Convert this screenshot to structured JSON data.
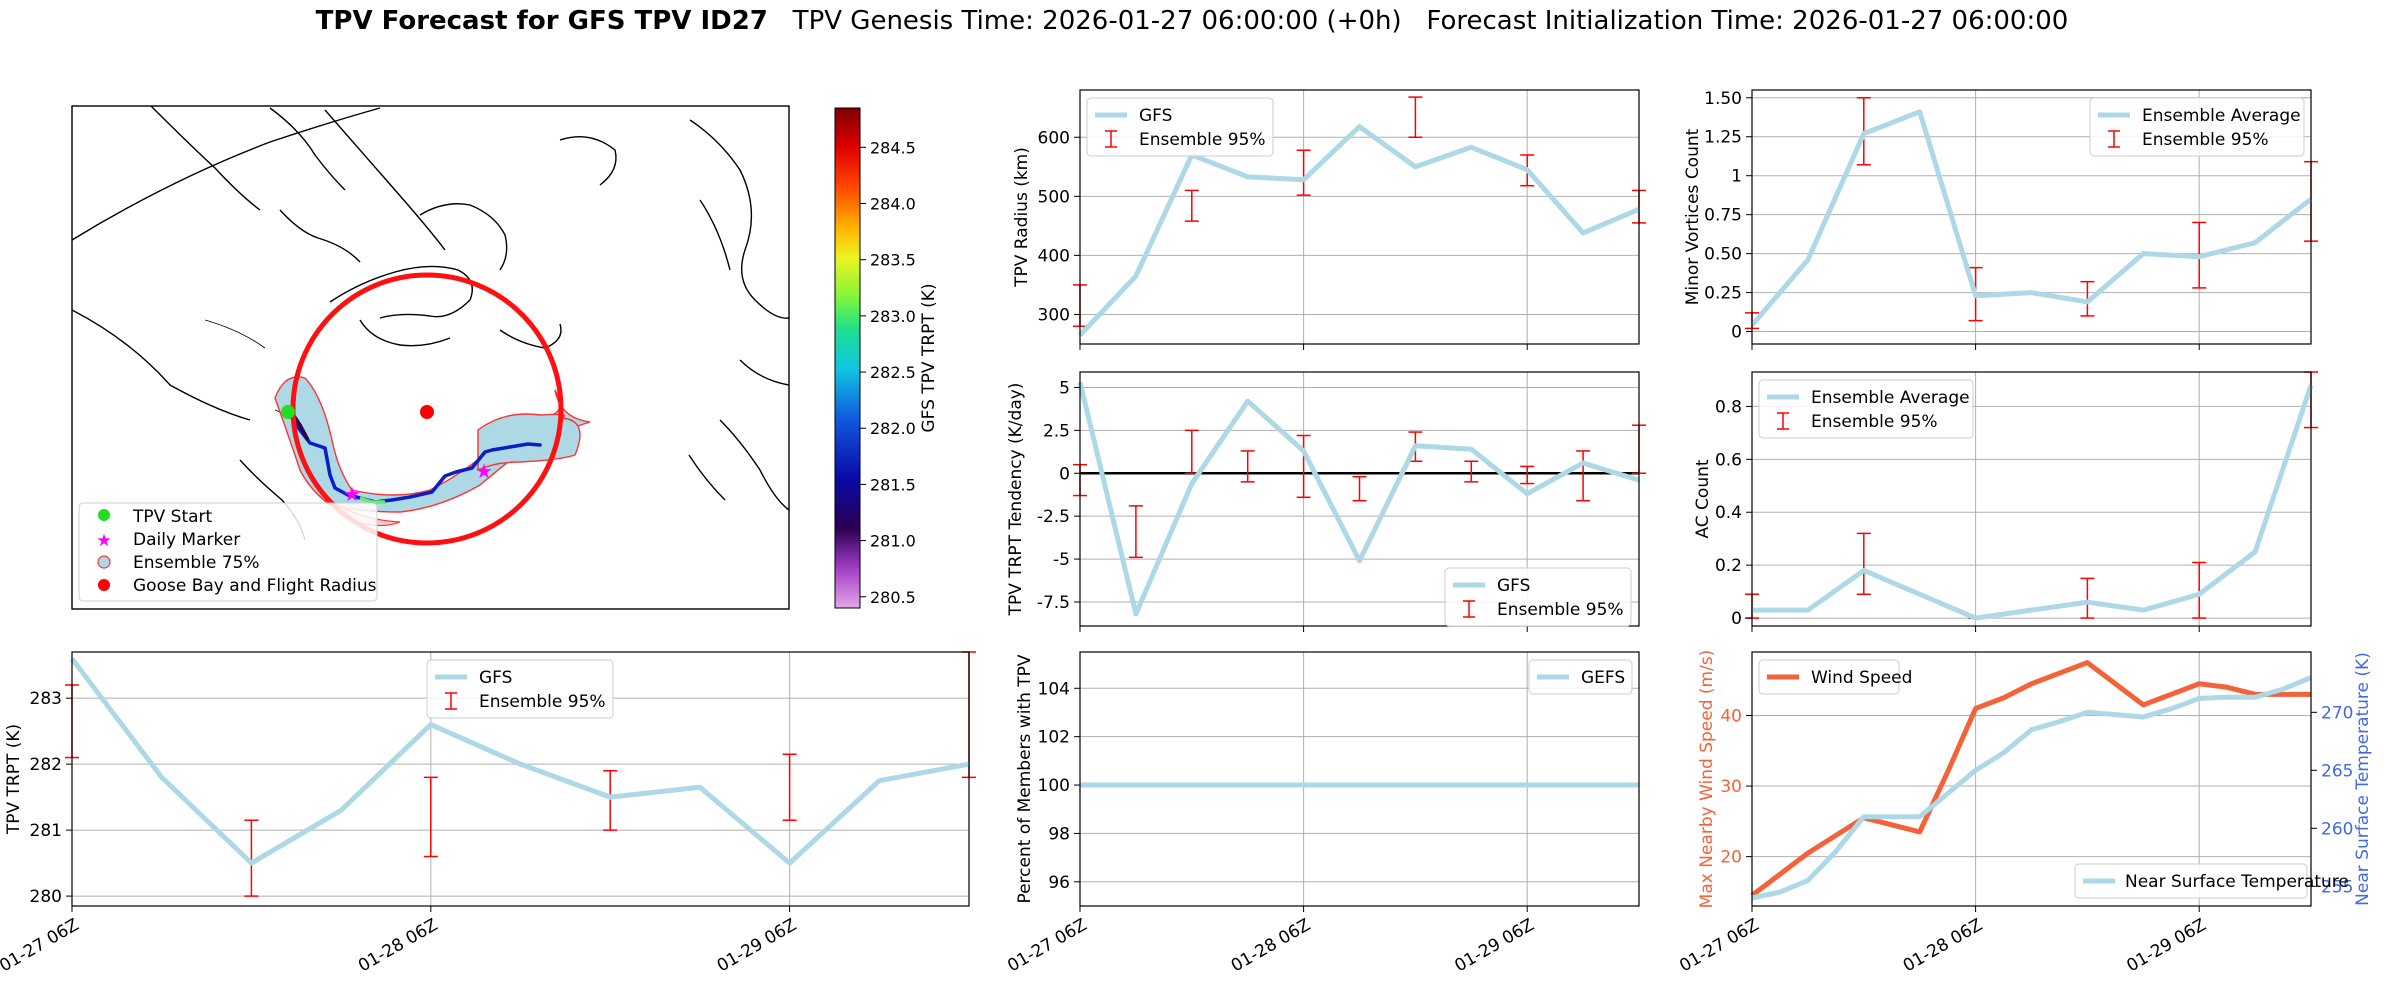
{
  "figure": {
    "title_bold": "TPV Forecast for GFS TPV ID27",
    "title_rest": "   TPV Genesis Time: 2026-01-27 06:00:00 (+0h)   Forecast Initialization Time: 2026-01-27 06:00:00"
  },
  "map": {
    "legend": [
      "TPV Start",
      "Daily Marker",
      "Ensemble 75%",
      "Goose Bay and Flight Radius"
    ],
    "colorbar": {
      "label": "GFS TPV TRPT (K)",
      "ticks": [
        "280.5",
        "281.0",
        "281.5",
        "282.0",
        "282.5",
        "283.0",
        "283.5",
        "284.0",
        "284.5"
      ],
      "range": [
        280.4,
        284.85
      ]
    },
    "colors": {
      "start": "#22dd22",
      "marker": "#ff00ff",
      "ensemble_fill": "#add8e6",
      "ensemble_edge": "#ff3333",
      "goose": "#ff0000"
    }
  },
  "x_ticks": [
    "01-27 06Z",
    "01-28 06Z",
    "01-29 06Z"
  ],
  "colors": {
    "line": "#add8e6",
    "err": "#ff0000",
    "wind": "#f4623a",
    "temp": "#add8e6",
    "temp_axis": "#4169e1"
  },
  "chart_data": [
    {
      "id": "radius",
      "type": "line",
      "ylabel": "TPV Radius (km)",
      "ylim": [
        250,
        680
      ],
      "yticks": [
        300,
        400,
        500,
        600
      ],
      "legend": [
        "GFS",
        "Ensemble 95%"
      ],
      "x": [
        0,
        0.25,
        0.5,
        0.75,
        1,
        1.25,
        1.5,
        1.75,
        2,
        2.25,
        2.5
      ],
      "values": [
        265,
        365,
        570,
        533,
        528,
        618,
        550,
        583,
        545,
        438,
        478
      ],
      "errorbars": [
        [
          0,
          280,
          350
        ],
        [
          0.5,
          458,
          510
        ],
        [
          1,
          502,
          578
        ],
        [
          1.5,
          600,
          668
        ],
        [
          2,
          518,
          570
        ],
        [
          2.5,
          455,
          510
        ]
      ]
    },
    {
      "id": "minor",
      "type": "line",
      "ylabel": "Minor Vortices Count",
      "ylim": [
        -0.08,
        1.55
      ],
      "yticks": [
        0.0,
        0.25,
        0.5,
        0.75,
        1.0,
        1.25,
        1.5
      ],
      "legend": [
        "Ensemble Average",
        "Ensemble 95%"
      ],
      "x": [
        0,
        0.25,
        0.5,
        0.75,
        1,
        1.25,
        1.5,
        1.75,
        2,
        2.25,
        2.5
      ],
      "values": [
        0.04,
        0.46,
        1.27,
        1.41,
        0.23,
        0.25,
        0.19,
        0.5,
        0.48,
        0.57,
        0.85
      ],
      "errorbars": [
        [
          0,
          0.02,
          0.12
        ],
        [
          0.5,
          1.07,
          1.5
        ],
        [
          1,
          0.07,
          0.41
        ],
        [
          1.5,
          0.1,
          0.32
        ],
        [
          2,
          0.28,
          0.7
        ],
        [
          2.5,
          0.58,
          1.09
        ]
      ]
    },
    {
      "id": "tendency",
      "type": "line",
      "ylabel": "TPV TRPT Tendency (K/day)",
      "ylim": [
        -8.9,
        5.9
      ],
      "yticks": [
        -7.5,
        -5.0,
        -2.5,
        0.0,
        2.5,
        5.0
      ],
      "legend": [
        "GFS",
        "Ensemble 95%"
      ],
      "x": [
        0,
        0.25,
        0.5,
        0.75,
        1,
        1.25,
        1.5,
        1.75,
        2,
        2.25,
        2.5
      ],
      "values": [
        5.3,
        -8.2,
        -0.6,
        4.2,
        1.3,
        -5.1,
        1.6,
        1.4,
        -1.2,
        0.6,
        -0.4
      ],
      "errorbars": [
        [
          0,
          -1.3,
          0.5
        ],
        [
          0.25,
          -4.9,
          -1.9
        ],
        [
          0.5,
          0.0,
          2.5
        ],
        [
          0.75,
          -0.5,
          1.3
        ],
        [
          1,
          -1.4,
          2.2
        ],
        [
          1.25,
          -1.6,
          -0.2
        ],
        [
          1.5,
          0.7,
          2.4
        ],
        [
          1.75,
          -0.5,
          0.7
        ],
        [
          2,
          -0.6,
          0.4
        ],
        [
          2.25,
          -1.6,
          1.3
        ],
        [
          2.5,
          0.0,
          2.8
        ]
      ]
    },
    {
      "id": "ac",
      "type": "line",
      "ylabel": "AC Count",
      "ylim": [
        -0.03,
        0.93
      ],
      "yticks": [
        0.0,
        0.2,
        0.4,
        0.6,
        0.8
      ],
      "legend": [
        "Ensemble Average",
        "Ensemble 95%"
      ],
      "x": [
        0,
        0.25,
        0.5,
        0.75,
        1,
        1.25,
        1.5,
        1.75,
        2,
        2.25,
        2.5
      ],
      "values": [
        0.03,
        0.03,
        0.18,
        0.09,
        0.0,
        0.03,
        0.06,
        0.03,
        0.09,
        0.25,
        0.88
      ],
      "errorbars": [
        [
          0,
          0.0,
          0.09
        ],
        [
          0.5,
          0.09,
          0.32
        ],
        [
          1,
          0.0,
          0.0
        ],
        [
          1.5,
          0.0,
          0.15
        ],
        [
          2,
          0.0,
          0.21
        ],
        [
          2.5,
          0.72,
          0.93
        ]
      ]
    },
    {
      "id": "trpt",
      "type": "line",
      "ylabel": "TPV TRPT (K)",
      "ylim": [
        279.85,
        283.7
      ],
      "yticks": [
        280,
        281,
        282,
        283
      ],
      "legend": [
        "GFS",
        "Ensemble 95%"
      ],
      "x": [
        0,
        0.25,
        0.5,
        0.75,
        1,
        1.25,
        1.5,
        1.75,
        2,
        2.25,
        2.5
      ],
      "values": [
        283.6,
        281.8,
        280.5,
        281.3,
        282.6,
        282.0,
        281.5,
        281.65,
        280.5,
        281.75,
        282.0
      ],
      "errorbars": [
        [
          0,
          282.1,
          283.2
        ],
        [
          0.5,
          280.0,
          281.15
        ],
        [
          1,
          280.6,
          281.8
        ],
        [
          1.5,
          281.0,
          281.9
        ],
        [
          2,
          281.15,
          282.15
        ],
        [
          2.5,
          281.8,
          283.7
        ]
      ]
    },
    {
      "id": "percent",
      "type": "line",
      "ylabel": "Percent of Members with TPV",
      "ylim": [
        95,
        105.5
      ],
      "yticks": [
        96,
        98,
        100,
        102,
        104
      ],
      "legend": [
        "GEFS"
      ],
      "x": [
        0,
        2.5
      ],
      "values": [
        100,
        100
      ]
    },
    {
      "id": "wind",
      "type": "line",
      "ylabel": "Max Nearby Wind Speed (m/s)",
      "ylim": [
        13,
        49
      ],
      "yticks": [
        20,
        30,
        40
      ],
      "ylabel2": "Near Surface Temperature (K)",
      "ylim2": [
        253.3,
        275.2
      ],
      "yticks2": [
        255,
        260,
        265,
        270
      ],
      "legend": [
        "Wind Speed"
      ],
      "legend2": [
        "Near Surface Temperature"
      ],
      "x": [
        0,
        0.125,
        0.25,
        0.375,
        0.5,
        0.625,
        0.75,
        0.875,
        1,
        1.125,
        1.25,
        1.375,
        1.5,
        1.625,
        1.75,
        1.875,
        2,
        2.125,
        2.25,
        2.375,
        2.5
      ],
      "series": [
        {
          "name": "Wind Speed",
          "axis": "left",
          "values": [
            14.5,
            17.5,
            20.5,
            23,
            25.5,
            24.5,
            23.5,
            32,
            41,
            42.5,
            44.5,
            46,
            47.5,
            44.5,
            41.5,
            43,
            44.5,
            44,
            43,
            43,
            43
          ]
        },
        {
          "name": "Near Surface Temperature",
          "axis": "right",
          "values": [
            254,
            254.5,
            255.5,
            258,
            261,
            261,
            261,
            263,
            265,
            266.5,
            268.5,
            269.2,
            270,
            269.8,
            269.6,
            270.3,
            271.2,
            271.3,
            271.3,
            272,
            273
          ]
        }
      ]
    }
  ]
}
